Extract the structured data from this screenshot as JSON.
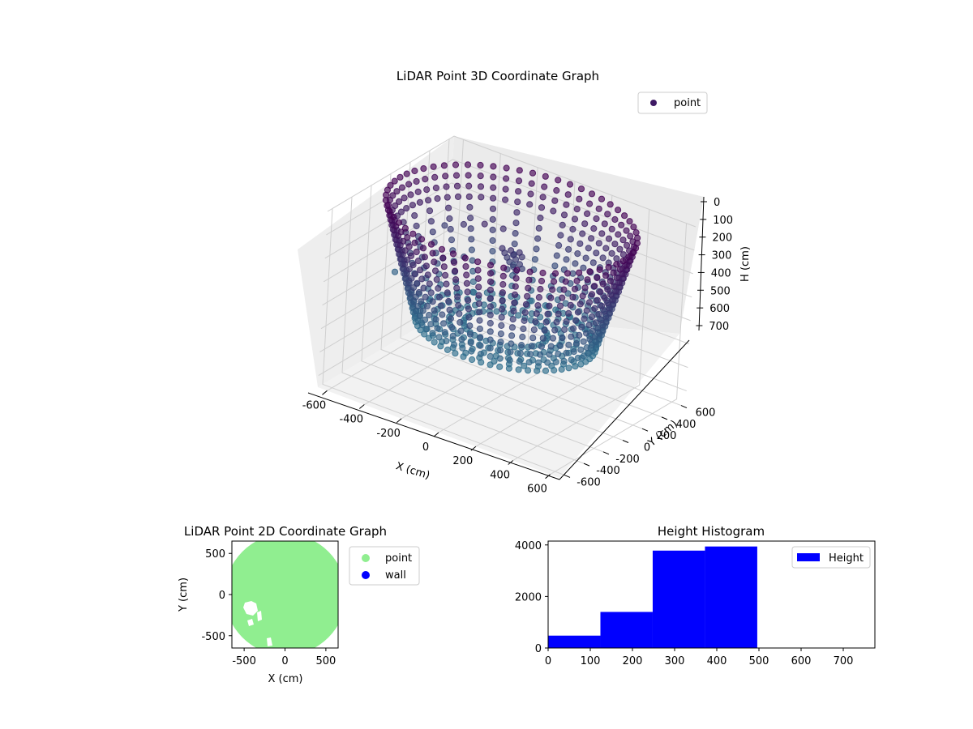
{
  "chart_data": [
    {
      "type": "scatter",
      "projection": "3d",
      "title": "LiDAR Point 3D Coordinate Graph",
      "xlabel": "X (cm)",
      "ylabel": "Y (cm)",
      "zlabel": "H (cm)",
      "xlim": [
        -650,
        650
      ],
      "ylim": [
        -650,
        650
      ],
      "zlim": [
        750,
        0
      ],
      "z_inverted": true,
      "xticks": [
        -600,
        -400,
        -200,
        0,
        200,
        400,
        600
      ],
      "yticks": [
        -600,
        -400,
        -200,
        0,
        200,
        400,
        600
      ],
      "zticks": [
        0,
        100,
        200,
        300,
        400,
        500,
        600,
        700
      ],
      "legend": [
        "point"
      ],
      "legend_position": "top-right",
      "colormap": "viridis (purple to teal by height)",
      "grid": true,
      "shape": "ring of points around the origin, radius about 600 cm, heights between 0 and about 500 cm; missing sector and scattered points on the north-west side"
    },
    {
      "type": "scatter",
      "title": "LiDAR Point 2D Coordinate Graph",
      "xlabel": "X (cm)",
      "ylabel": "Y (cm)",
      "xlim": [
        -650,
        650
      ],
      "ylim": [
        -650,
        650
      ],
      "xticks": [
        -500,
        0,
        500
      ],
      "yticks": [
        -500,
        0,
        500
      ],
      "series": [
        {
          "name": "point",
          "color": "#90ee90"
        },
        {
          "name": "wall",
          "color": "#0000ff"
        }
      ],
      "legend_position": "outside-right",
      "grid": false
    },
    {
      "type": "bar",
      "subtype": "histogram",
      "title": "Height Histogram",
      "xlim": [
        0,
        775
      ],
      "ylim": [
        0,
        4150
      ],
      "xticks": [
        0,
        100,
        200,
        300,
        400,
        500,
        600,
        700
      ],
      "yticks": [
        0,
        2000,
        4000
      ],
      "bin_edges": [
        0,
        124,
        248,
        372,
        496,
        620,
        744
      ],
      "values": [
        480,
        1400,
        3780,
        3940,
        0,
        0
      ],
      "series": [
        {
          "name": "Height",
          "color": "#0000ff"
        }
      ],
      "legend_position": "top-right",
      "grid": false
    }
  ],
  "colors": {
    "point3d_purple": "#440154",
    "point3d_teal": "#2c728e",
    "pane": "#f2f2f2",
    "point2d": "#90ee90",
    "wall2d": "#0000ff",
    "hist": "#0000ff"
  }
}
